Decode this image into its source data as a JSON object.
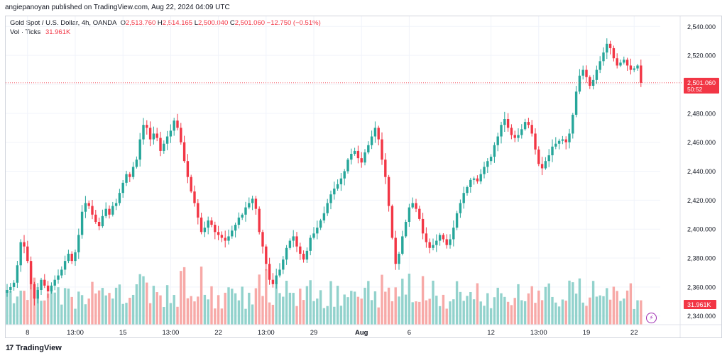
{
  "publisher_line": "angiepanoyan published on TradingView.com, Aug 22, 2024 04:09 UTC",
  "legend": {
    "symbol": "Gold Spot / U.S. Dollar, 4h, OANDA",
    "o_label": "O",
    "o_value": "2,513.760",
    "h_label": "H",
    "h_value": "2,514.165",
    "l_label": "L",
    "l_value": "2,500.040",
    "c_label": "C",
    "c_value": "2,501.060",
    "change": "−12.750 (−0.51%)",
    "vol_label": "Vol · Ticks",
    "vol_value": "31.961K"
  },
  "footer": {
    "logo": "17",
    "brand": "TradingView"
  },
  "colors": {
    "up": "#26a69a",
    "down": "#f23645",
    "vol_up": "#92d2cc",
    "vol_down": "#f7a9a7",
    "grid": "#f0f3fa",
    "axis_text": "#131722"
  },
  "chart_data": {
    "type": "candlestick",
    "symbol": "Gold Spot / U.S. Dollar",
    "interval": "4h",
    "ylim": [
      2334,
      2547
    ],
    "y_ticks": [
      "2,340.000",
      "2,360.000",
      "2,380.000",
      "2,400.000",
      "2,420.000",
      "2,440.000",
      "2,460.000",
      "2,480.000",
      "2,500.000",
      "2,520.000",
      "2,540.000"
    ],
    "y_tick_values": [
      2340,
      2360,
      2380,
      2400,
      2420,
      2440,
      2460,
      2480,
      2500,
      2520,
      2540
    ],
    "x_ticks": [
      "8",
      "13:00",
      "15",
      "13:00",
      "22",
      "13:00",
      "29",
      "Aug",
      "6",
      "12",
      "13:00",
      "19",
      "22"
    ],
    "x_tick_bar_index": [
      6,
      20,
      34,
      48,
      62,
      76,
      90,
      104,
      118,
      142,
      156,
      170,
      184
    ],
    "current_price": {
      "label": "2,501.060",
      "countdown": "50:52",
      "value": 2501.06
    },
    "volume_label": "31.961K",
    "grid": true,
    "series": [
      {
        "name": "Gold Spot / U.S. Dollar",
        "close": [
          2358,
          2360,
          2363,
          2375,
          2391,
          2388,
          2378,
          2362,
          2352,
          2358,
          2365,
          2361,
          2357,
          2361,
          2365,
          2368,
          2372,
          2378,
          2383,
          2378,
          2384,
          2396,
          2412,
          2418,
          2416,
          2410,
          2405,
          2402,
          2409,
          2414,
          2410,
          2416,
          2418,
          2425,
          2432,
          2438,
          2436,
          2443,
          2448,
          2462,
          2472,
          2470,
          2462,
          2466,
          2463,
          2454,
          2459,
          2464,
          2468,
          2475,
          2470,
          2460,
          2447,
          2436,
          2426,
          2418,
          2408,
          2398,
          2401,
          2406,
          2403,
          2398,
          2396,
          2394,
          2392,
          2395,
          2399,
          2403,
          2408,
          2410,
          2415,
          2418,
          2421,
          2414,
          2398,
          2388,
          2376,
          2365,
          2362,
          2368,
          2372,
          2379,
          2387,
          2392,
          2395,
          2388,
          2383,
          2379,
          2385,
          2394,
          2397,
          2401,
          2406,
          2411,
          2418,
          2424,
          2428,
          2431,
          2435,
          2440,
          2448,
          2452,
          2454,
          2449,
          2446,
          2453,
          2458,
          2464,
          2470,
          2462,
          2448,
          2436,
          2416,
          2394,
          2376,
          2383,
          2395,
          2405,
          2415,
          2418,
          2414,
          2407,
          2397,
          2391,
          2387,
          2389,
          2392,
          2396,
          2393,
          2389,
          2393,
          2401,
          2411,
          2418,
          2425,
          2429,
          2434,
          2435,
          2433,
          2438,
          2443,
          2447,
          2450,
          2458,
          2464,
          2472,
          2476,
          2470,
          2465,
          2463,
          2465,
          2469,
          2474,
          2472,
          2466,
          2455,
          2445,
          2442,
          2447,
          2451,
          2457,
          2459,
          2461,
          2462,
          2460,
          2466,
          2479,
          2495,
          2506,
          2510,
          2505,
          2499,
          2503,
          2510,
          2516,
          2522,
          2528,
          2525,
          2518,
          2513,
          2515,
          2517,
          2513,
          2510,
          2511,
          2513,
          2501
        ]
      }
    ]
  }
}
